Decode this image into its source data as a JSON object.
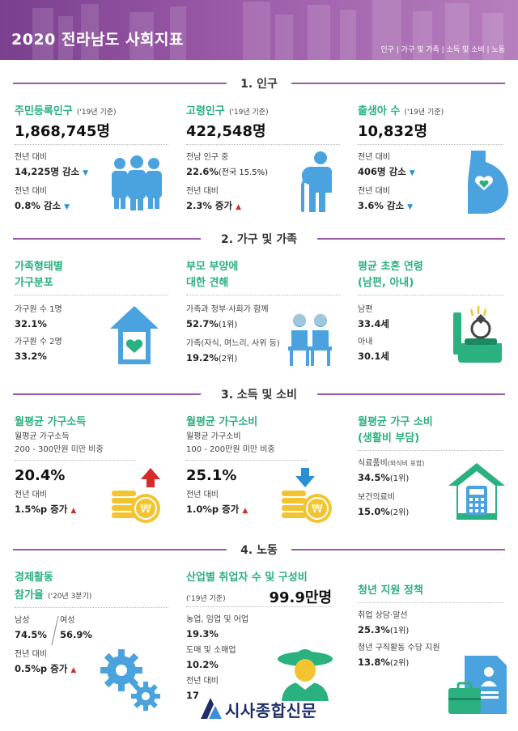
{
  "header": {
    "title": "2020 전라남도 사회지표",
    "nav": "인구 | 가구 및 가족 | 소득 및 소비 | 노동"
  },
  "sections": {
    "s1": "1. 인구",
    "s2": "2. 가구 및 가족",
    "s3": "3. 소득 및 소비",
    "s4": "4. 노동"
  },
  "population": {
    "registered": {
      "title": "주민등록인구",
      "note": "('19년 기준)",
      "value": "1,868,745명",
      "l1": "전년 대비",
      "v1": "14,225명 감소",
      "l2": "전년 대비",
      "v2": "0.8% 감소"
    },
    "elderly": {
      "title": "고령인구",
      "note": "('19년 기준)",
      "value": "422,548명",
      "l1": "전남 인구 중",
      "v1": "22.6%",
      "v1b": "(전국 15.5%)",
      "l2": "전년 대비",
      "v2": "2.3% 증가"
    },
    "births": {
      "title": "출생아 수",
      "note": "('19년 기준)",
      "value": "10,832명",
      "l1": "전년 대비",
      "v1": "406명 감소",
      "l2": "전년 대비",
      "v2": "3.6% 감소"
    }
  },
  "household": {
    "type": {
      "title1": "가족형태별",
      "title2": "가구분포",
      "l1": "가구원 수 1명",
      "v1": "32.1%",
      "l2": "가구원 수 2명",
      "v2": "33.2%"
    },
    "parents": {
      "title1": "부모 부양에",
      "title2": "대한 견해",
      "l1": "가족과 정부·사회가 함께",
      "v1": "52.7%",
      "v1b": "(1위)",
      "l2": "가족(자식, 며느리, 사위 등)",
      "v2": "19.2%",
      "v2b": "(2위)"
    },
    "marriage": {
      "title1": "평균 초혼 연령",
      "title2": "(남편, 아내)",
      "l1": "남편",
      "v1": "33.4세",
      "l2": "아내",
      "v2": "30.1세"
    }
  },
  "income": {
    "hh_income": {
      "title": "월평균 가구소득",
      "l1": "월평균 가구소득",
      "l1b": "200 - 300만원 미만 비중",
      "value": "20.4%",
      "l2": "전년 대비",
      "v2": "1.5%p 증가"
    },
    "hh_spend": {
      "title": "월평균 가구소비",
      "l1": "월평균 가구소비",
      "l1b": "100 - 200만원 미만 비중",
      "value": "25.1%",
      "l2": "전년 대비",
      "v2": "1.0%p 증가"
    },
    "burden": {
      "title1": "월평균 가구 소비",
      "title2": "(생활비 부담)",
      "l1": "식료품비",
      "l1b": "(외식비 포함)",
      "v1": "34.5%",
      "v1b": "(1위)",
      "l2": "보건의료비",
      "v2": "15.0%",
      "v2b": "(2위)"
    }
  },
  "labor": {
    "participation": {
      "title1": "경제활동",
      "title2": "참가율",
      "note": "('20년 3분기)",
      "male_l": "남성",
      "female_l": "여성",
      "male_v": "74.5%",
      "female_v": "56.9%",
      "l2": "전년 대비",
      "v2": "0.5%p 증가"
    },
    "industry": {
      "title": "산업별 취업자 수 및 구성비",
      "note": "('19년 기준)",
      "value": "99.9만명",
      "l1": "농업, 임업 및 어업",
      "v1": "19.3%",
      "l2": "도매 및 소매업",
      "v2": "10.2%",
      "l3": "전년 대비",
      "v3": "17"
    },
    "youth": {
      "title": "청년 지원 정책",
      "l1": "취업 상담·알선",
      "v1": "25.3%",
      "v1b": "(1위)",
      "l2": "청년 구직활동 수당 지원",
      "v2": "13.8%",
      "v2b": "(2위)"
    }
  },
  "logo": {
    "text": "시사종합신문"
  },
  "colors": {
    "purple": "#9b5aa8",
    "green": "#2bb07f",
    "blue": "#4aa3df",
    "yellow": "#f4c430",
    "red": "#d62b2b",
    "sky": "#2b8fd6"
  },
  "icons": [
    "people-icon",
    "elderly-person-icon",
    "pregnant-icon",
    "house-heart-icon",
    "elderly-couple-icon",
    "ring-box-icon",
    "coins-up-icon",
    "coins-down-icon",
    "house-calculator-icon",
    "gears-icon",
    "farmer-icon",
    "document-briefcase-icon"
  ]
}
